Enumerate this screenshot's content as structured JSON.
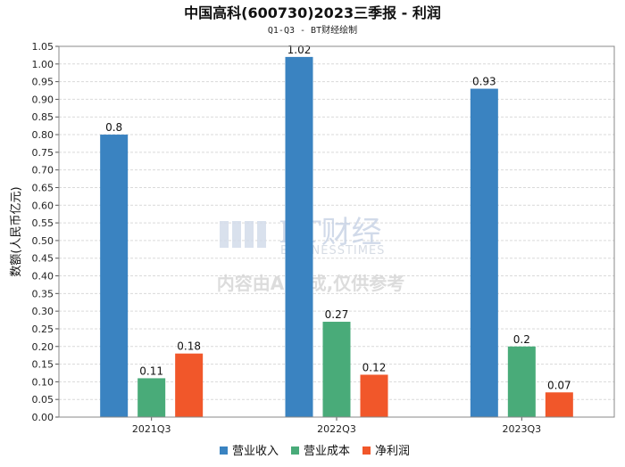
{
  "chart_data": {
    "type": "bar",
    "title": "中国高科(600730)2023三季报 - 利润",
    "subtitle": "Q1-Q3 - BT财经绘制",
    "ylabel": "数额(人民币亿元)",
    "xlabel": "",
    "ylim": [
      0,
      1.05
    ],
    "ytick_step": 0.05,
    "categories": [
      "2021Q3",
      "2022Q3",
      "2023Q3"
    ],
    "series": [
      {
        "name": "营业收入",
        "values": [
          0.8,
          1.02,
          0.93
        ],
        "color": "#3a83c1"
      },
      {
        "name": "营业成本",
        "values": [
          0.11,
          0.27,
          0.2
        ],
        "color": "#49ab79"
      },
      {
        "name": "净利润",
        "values": [
          0.18,
          0.12,
          0.07
        ],
        "color": "#f1572a"
      }
    ],
    "data_labels": [
      [
        "0.8",
        "1.02",
        "0.93"
      ],
      [
        "0.11",
        "0.27",
        "0.2"
      ],
      [
        "0.18",
        "0.12",
        "0.07"
      ]
    ],
    "grid": true,
    "legend_position": "bottom-center"
  },
  "watermark": {
    "brand": "BT财经",
    "brand_sub": "BUSINESSTIMES",
    "notice": "内容由AI生成,仅供参考"
  }
}
